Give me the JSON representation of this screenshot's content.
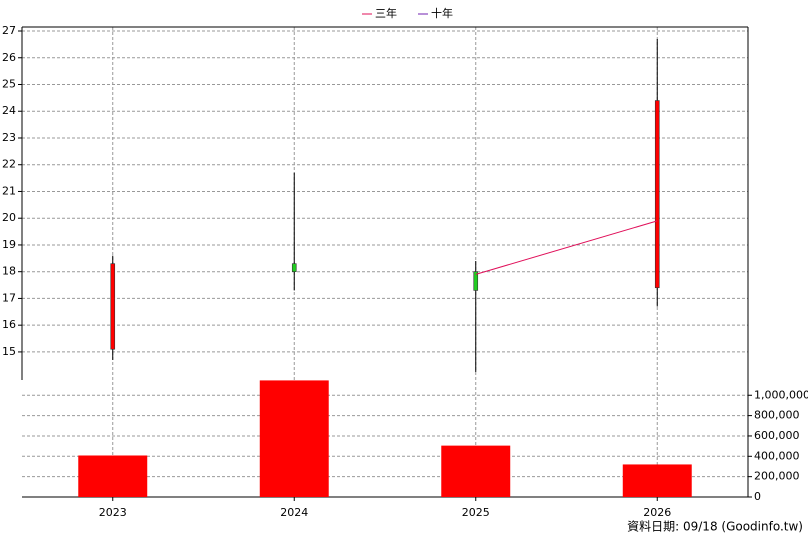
{
  "chart_data": [
    {
      "type": "candlestick",
      "open": [
        15.1,
        18.3,
        18.0,
        17.4
      ],
      "high": [
        18.6,
        21.7,
        18.4,
        26.7
      ],
      "low": [
        14.7,
        17.3,
        14.25,
        16.7
      ],
      "close": [
        18.3,
        18.0,
        17.3,
        24.4
      ],
      "up_color": "#ff0000",
      "down_color": "#22cc22",
      "series": [
        {
          "name": "三年",
          "color": "#e0105a",
          "values": [
            null,
            null,
            17.9,
            19.9
          ]
        },
        {
          "name": "十年",
          "color": "#7020b0",
          "values": [
            null,
            null,
            null,
            null
          ]
        }
      ],
      "ylim": [
        13.95,
        27.15
      ],
      "yticks": [
        15,
        16,
        17,
        18,
        19,
        20,
        21,
        22,
        23,
        24,
        25,
        26,
        27
      ],
      "grid": true
    },
    {
      "type": "bar",
      "categories": [
        "2023",
        "2024",
        "2025",
        "2026"
      ],
      "values": [
        408000,
        1146000,
        505000,
        320000
      ],
      "color": "#ff0000",
      "ylim": [
        0,
        1150000
      ],
      "yticks": [
        0,
        {
          "value": 200000,
          "label": "200,000"
        },
        {
          "value": 400000,
          "label": "400,000"
        },
        {
          "value": 600000,
          "label": "600,000"
        },
        {
          "value": 800000,
          "label": "800,000"
        },
        {
          "value": 1000000,
          "label": "1,000,000"
        }
      ],
      "grid": true
    }
  ],
  "footer": "資料日期: 09/18  (Goodinfo.tw)"
}
